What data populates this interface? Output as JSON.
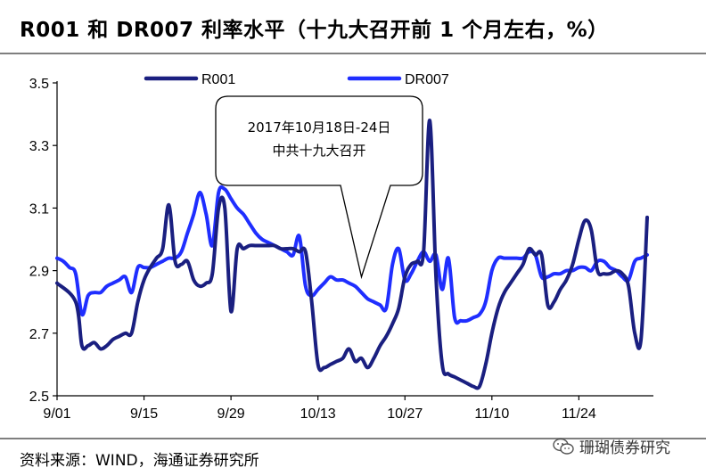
{
  "header": {
    "title": "R001 和 DR007 利率水平（十九大召开前 1 个月左右，%）"
  },
  "footer": {
    "source": "资料来源：WIND，海通证券研究所",
    "watermark": "珊瑚债券研究"
  },
  "chart_data": {
    "type": "line",
    "title": "R001 和 DR007 利率水平（十九大召开前 1 个月左右，%）",
    "xlabel": "",
    "ylabel": "",
    "x_ticks": [
      "9/01",
      "9/15",
      "9/29",
      "10/13",
      "10/27",
      "11/10",
      "11/24"
    ],
    "y_ticks": [
      "2.5",
      "2.7",
      "2.9",
      "3.1",
      "3.3",
      "3.5"
    ],
    "ylim": [
      2.5,
      3.5
    ],
    "xlim": [
      0,
      96
    ],
    "grid": false,
    "legend": "top-center",
    "annotation": {
      "line1": "2017年10月18日-24日",
      "line2": "中共十九大召开",
      "points_to": [
        49,
        2.88
      ]
    },
    "series": [
      {
        "name": "R001",
        "color": "#1a1f80",
        "width": 4,
        "x": [
          0,
          3,
          4,
          5,
          6,
          7,
          8,
          9,
          10,
          11,
          12,
          13,
          14,
          15,
          16,
          17,
          18,
          19,
          20,
          21,
          22,
          23,
          24,
          25,
          26,
          27,
          28,
          29,
          30,
          31,
          32,
          33,
          34,
          35,
          36,
          37,
          38,
          39,
          40,
          41,
          42,
          43,
          44,
          45,
          46,
          47,
          48,
          49,
          50,
          51,
          52,
          53,
          54,
          55,
          56,
          57,
          58,
          59,
          60,
          61,
          62,
          63,
          64,
          65,
          66,
          67,
          68,
          69,
          70,
          71,
          72,
          73,
          74,
          75,
          76,
          77,
          78,
          79,
          80,
          81,
          82,
          83,
          84,
          85,
          86,
          87,
          88,
          89,
          90,
          91,
          92,
          93,
          94,
          95
        ],
        "values": [
          2.86,
          2.8,
          2.66,
          2.66,
          2.67,
          2.65,
          2.66,
          2.68,
          2.69,
          2.7,
          2.7,
          2.8,
          2.87,
          2.91,
          2.94,
          2.97,
          3.11,
          2.93,
          2.92,
          2.93,
          2.87,
          2.85,
          2.86,
          2.89,
          3.1,
          3.1,
          2.77,
          2.97,
          2.97,
          2.98,
          2.98,
          2.98,
          2.98,
          2.98,
          2.97,
          2.97,
          2.97,
          2.96,
          2.96,
          2.8,
          2.6,
          2.59,
          2.6,
          2.61,
          2.62,
          2.65,
          2.61,
          2.62,
          2.59,
          2.62,
          2.66,
          2.69,
          2.73,
          2.78,
          2.88,
          2.92,
          2.93,
          2.96,
          3.38,
          2.88,
          2.6,
          2.57,
          2.56,
          2.55,
          2.54,
          2.53,
          2.53,
          2.6,
          2.7,
          2.78,
          2.83,
          2.86,
          2.89,
          2.92,
          2.97,
          2.95,
          2.95,
          2.79,
          2.8,
          2.84,
          2.87,
          2.92,
          3.0,
          3.06,
          3.03,
          2.9,
          2.89,
          2.89,
          2.9,
          2.89,
          2.85,
          2.7,
          2.68,
          3.07
        ]
      },
      {
        "name": "DR007",
        "color": "#1f2eff",
        "width": 4,
        "x": [
          0,
          1,
          2,
          3,
          4,
          5,
          6,
          7,
          8,
          9,
          10,
          11,
          12,
          13,
          14,
          15,
          16,
          17,
          18,
          19,
          20,
          21,
          22,
          23,
          24,
          25,
          26,
          27,
          28,
          29,
          30,
          31,
          32,
          33,
          34,
          35,
          36,
          37,
          38,
          39,
          40,
          41,
          42,
          43,
          44,
          45,
          46,
          47,
          48,
          49,
          50,
          51,
          52,
          53,
          54,
          55,
          56,
          57,
          58,
          59,
          60,
          61,
          62,
          63,
          64,
          65,
          66,
          67,
          68,
          69,
          70,
          71,
          72,
          73,
          74,
          75,
          76,
          77,
          78,
          79,
          80,
          81,
          82,
          83,
          84,
          85,
          86,
          87,
          88,
          89,
          90,
          91,
          92,
          93,
          94,
          95
        ],
        "values": [
          2.94,
          2.93,
          2.91,
          2.89,
          2.76,
          2.82,
          2.83,
          2.83,
          2.85,
          2.86,
          2.87,
          2.88,
          2.83,
          2.91,
          2.91,
          2.91,
          2.92,
          2.93,
          2.94,
          2.94,
          2.96,
          3.02,
          3.08,
          3.15,
          3.08,
          2.98,
          3.15,
          3.16,
          3.13,
          3.1,
          3.08,
          3.05,
          3.02,
          3.0,
          2.99,
          2.98,
          2.97,
          2.96,
          2.95,
          3.01,
          2.85,
          2.82,
          2.84,
          2.86,
          2.88,
          2.87,
          2.87,
          2.86,
          2.85,
          2.83,
          2.81,
          2.8,
          2.79,
          2.78,
          2.92,
          2.97,
          2.87,
          2.89,
          2.93,
          2.96,
          2.93,
          2.95,
          2.84,
          2.94,
          2.75,
          2.74,
          2.74,
          2.75,
          2.76,
          2.8,
          2.9,
          2.94,
          2.94,
          2.94,
          2.94,
          2.94,
          2.96,
          2.95,
          2.88,
          2.88,
          2.89,
          2.89,
          2.9,
          2.9,
          2.91,
          2.91,
          2.9,
          2.93,
          2.93,
          2.91,
          2.9,
          2.88,
          2.87,
          2.93,
          2.94,
          2.95
        ]
      }
    ]
  }
}
